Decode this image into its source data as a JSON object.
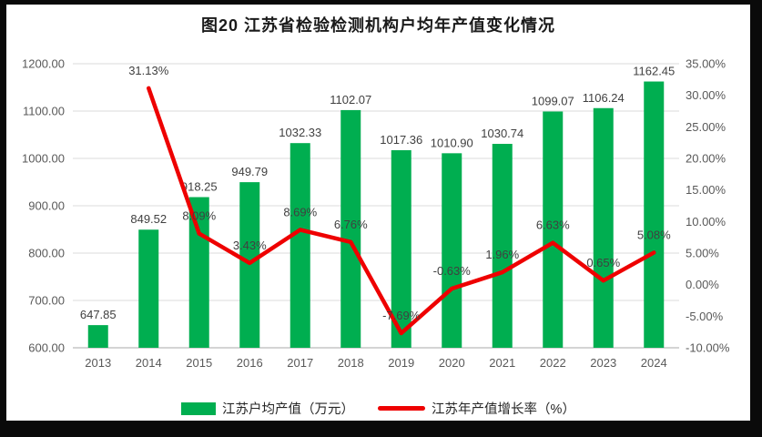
{
  "title": "图20  江苏省检验检测机构户均年产值变化情况",
  "colors": {
    "bar": "#00AE50",
    "line": "#EE0000",
    "grid": "#E2E2E2",
    "axis_line": "#C6C6C6",
    "tick_label": "#595959",
    "data_label": "#404040",
    "frame": "#0A0A0A"
  },
  "chart_data": {
    "type": "bar+line combo",
    "title": "图20  江苏省检验检测机构户均年产值变化情况",
    "categories": [
      "2013",
      "2014",
      "2015",
      "2016",
      "2017",
      "2018",
      "2019",
      "2020",
      "2021",
      "2022",
      "2023",
      "2024"
    ],
    "series": [
      {
        "name": "江苏户均产值（万元）",
        "type": "bar",
        "axis": "left",
        "color": "#00AE50",
        "values": [
          647.85,
          849.52,
          918.25,
          949.79,
          1032.33,
          1102.07,
          1017.36,
          1010.9,
          1030.74,
          1099.07,
          1106.24,
          1162.45
        ],
        "labels": [
          "647.85",
          "849.52",
          "918.25",
          "949.79",
          "1032.33",
          "1102.07",
          "1017.36",
          "1010.90",
          "1030.74",
          "1099.07",
          "1106.24",
          "1162.45"
        ]
      },
      {
        "name": "江苏年产值增长率（%）",
        "type": "line",
        "axis": "right",
        "color": "#EE0000",
        "start_index": 1,
        "values": [
          31.13,
          8.09,
          3.43,
          8.69,
          6.76,
          -7.69,
          -0.63,
          1.96,
          6.63,
          0.65,
          5.08
        ],
        "labels": [
          "31.13%",
          "8.09%",
          "3.43%",
          "8.69%",
          "6.76%",
          "-7.69%",
          "-0.63%",
          "1.96%",
          "6.63%",
          "0.65%",
          "5.08%"
        ]
      }
    ],
    "left_axis": {
      "min": 600,
      "max": 1200,
      "step": 100,
      "tick_labels": [
        "600.00",
        "700.00",
        "800.00",
        "900.00",
        "1000.00",
        "1100.00",
        "1200.00"
      ]
    },
    "right_axis": {
      "min": -10,
      "max": 35,
      "step": 5,
      "tick_labels": [
        "-10.00%",
        "-5.00%",
        "0.00%",
        "5.00%",
        "10.00%",
        "15.00%",
        "20.00%",
        "25.00%",
        "30.00%",
        "35.00%"
      ]
    },
    "grid": "horizontal",
    "legend_position": "bottom",
    "legend": [
      "江苏户均产值（万元）",
      "江苏年产值增长率（%）"
    ]
  }
}
